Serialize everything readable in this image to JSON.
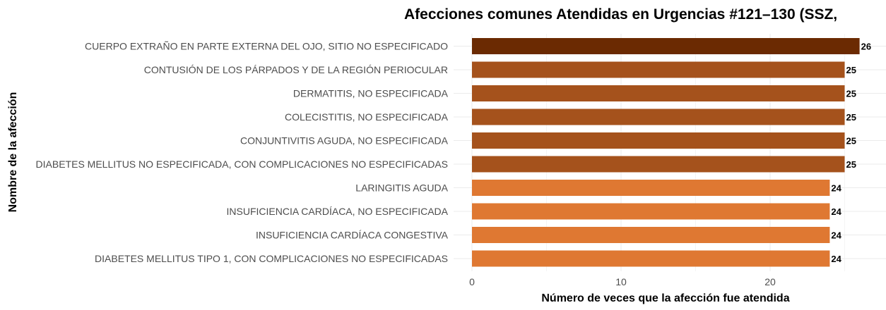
{
  "chart_data": {
    "type": "bar",
    "orientation": "horizontal",
    "title": "Afecciones comunes Atendidas en Urgencias #121–130 (SSZ,",
    "xlabel": "Número de veces que la afección fue atendida",
    "ylabel": "Nombre de la afección",
    "xlim": [
      0,
      27
    ],
    "x_ticks": [
      0,
      10,
      20
    ],
    "grid": true,
    "legend": "none",
    "categories": [
      "CUERPO EXTRAÑO EN PARTE EXTERNA DEL OJO, SITIO NO ESPECIFICADO",
      "CONTUSIÓN DE LOS PÁRPADOS Y DE LA REGIÓN PERIOCULAR",
      "DERMATITIS, NO ESPECIFICADA",
      "COLECISTITIS, NO ESPECIFICADA",
      "CONJUNTIVITIS AGUDA, NO ESPECIFICADA",
      "DIABETES MELLITUS NO ESPECIFICADA, CON COMPLICACIONES NO ESPECIFICADAS",
      "LARINGITIS AGUDA",
      "INSUFICIENCIA CARDÍACA, NO ESPECIFICADA",
      "INSUFICIENCIA CARDÍACA CONGESTIVA",
      "DIABETES MELLITUS TIPO 1, CON COMPLICACIONES NO ESPECIFICADAS"
    ],
    "values": [
      26,
      25,
      25,
      25,
      25,
      25,
      24,
      24,
      24,
      24
    ],
    "bar_colors": [
      "#6b2a02",
      "#a5521c",
      "#a5521c",
      "#a5521c",
      "#a5521c",
      "#a5521c",
      "#df7832",
      "#df7832",
      "#df7832",
      "#df7832"
    ]
  }
}
